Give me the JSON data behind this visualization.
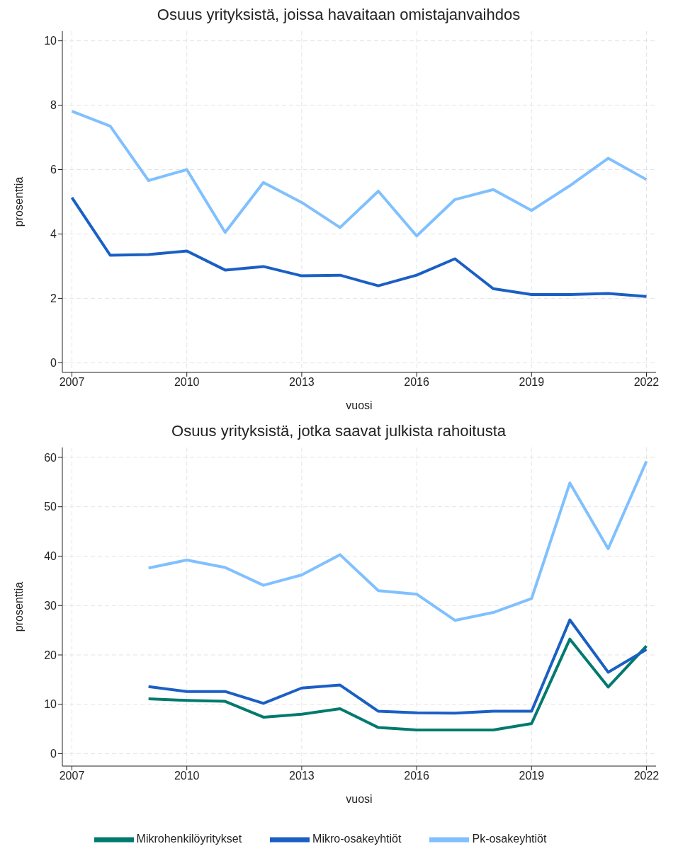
{
  "chart_data": [
    {
      "type": "line",
      "title": "Osuus yrityksistä, joissa havaitaan omistajanvaihdos",
      "xlabel": "vuosi",
      "ylabel": "prosenttia",
      "x": [
        2007,
        2008,
        2009,
        2010,
        2011,
        2012,
        2013,
        2014,
        2015,
        2016,
        2017,
        2018,
        2019,
        2020,
        2021,
        2022
      ],
      "xlim": [
        2006.75,
        2022.25
      ],
      "xticks": [
        2007,
        2010,
        2013,
        2016,
        2019,
        2022
      ],
      "ylim": [
        -0.3,
        10.3
      ],
      "yticks": [
        0,
        2,
        4,
        6,
        8,
        10
      ],
      "grid": true,
      "legend": false,
      "marker": "none",
      "line_style": "solid",
      "series": [
        {
          "color": "#1a5fc4",
          "values": [
            5.13,
            3.34,
            3.36,
            3.47,
            2.88,
            2.99,
            2.7,
            2.72,
            2.39,
            2.72,
            3.23,
            2.3,
            2.12,
            2.12,
            2.15,
            2.06
          ]
        },
        {
          "color": "#80c0ff",
          "values": [
            7.81,
            7.35,
            5.66,
            6.0,
            4.05,
            5.6,
            4.98,
            4.2,
            5.33,
            3.94,
            5.07,
            5.38,
            4.73,
            5.5,
            6.35,
            5.69
          ]
        }
      ]
    },
    {
      "type": "line",
      "title": "Osuus yrityksistä, jotka saavat julkista rahoitusta",
      "xlabel": "vuosi",
      "ylabel": "prosenttia",
      "x": [
        2009,
        2010,
        2011,
        2012,
        2013,
        2014,
        2015,
        2016,
        2017,
        2018,
        2019,
        2020,
        2021,
        2022
      ],
      "xlim": [
        2006.75,
        2022.25
      ],
      "xticks": [
        2007,
        2010,
        2013,
        2016,
        2019,
        2022
      ],
      "ylim": [
        -2.5,
        62
      ],
      "yticks": [
        0,
        10,
        20,
        30,
        40,
        50,
        60
      ],
      "grid": true,
      "legend": "bottom",
      "marker": "none",
      "line_style": "solid",
      "series": [
        {
          "name": "Mikrohenkilöyritykset",
          "color": "#007a6e",
          "values": [
            11.1,
            10.8,
            10.6,
            7.4,
            8.0,
            9.1,
            5.3,
            4.8,
            4.8,
            4.8,
            6.1,
            23.2,
            13.5,
            21.8
          ]
        },
        {
          "name": "Mikro-osakeyhtiöt",
          "color": "#1a5fc4",
          "values": [
            13.6,
            12.6,
            12.6,
            10.2,
            13.3,
            13.9,
            8.6,
            8.3,
            8.2,
            8.6,
            8.6,
            27.1,
            16.5,
            21.1
          ]
        },
        {
          "name": "Pk-osakeyhtiöt",
          "color": "#80c0ff",
          "values": [
            37.6,
            39.2,
            37.7,
            34.1,
            36.2,
            40.3,
            33.0,
            32.3,
            27.0,
            28.6,
            31.4,
            54.8,
            41.5,
            59.2
          ]
        }
      ]
    }
  ]
}
